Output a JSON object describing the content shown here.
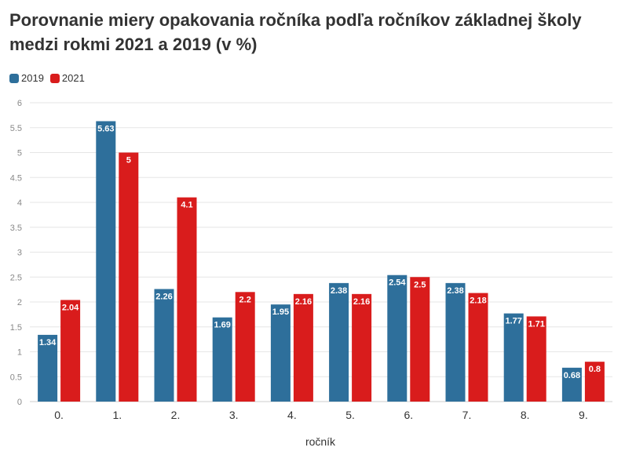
{
  "chart_data": {
    "type": "bar",
    "title": "Porovnanie miery opakovania ročníka podľa ročníkov základnej školy medzi rokmi 2021 a 2019 (v %)",
    "xlabel": "ročník",
    "ylabel": "",
    "categories": [
      "0.",
      "1.",
      "2.",
      "3.",
      "4.",
      "5.",
      "6.",
      "7.",
      "8.",
      "9."
    ],
    "series": [
      {
        "name": "2019",
        "color": "#2e6f9b",
        "values": [
          1.34,
          5.63,
          2.26,
          1.69,
          1.95,
          2.38,
          2.54,
          2.38,
          1.77,
          0.68
        ]
      },
      {
        "name": "2021",
        "color": "#d91c1c",
        "values": [
          2.04,
          5,
          4.1,
          2.2,
          2.16,
          2.16,
          2.5,
          2.18,
          1.71,
          0.8
        ]
      }
    ],
    "ylim": [
      0,
      6
    ],
    "yticks": [
      "0",
      "0.5",
      "1",
      "1.5",
      "2",
      "2.5",
      "3",
      "3.5",
      "4",
      "4.5",
      "5",
      "5.5",
      "6"
    ],
    "grid": true,
    "legend_position": "top-left"
  }
}
